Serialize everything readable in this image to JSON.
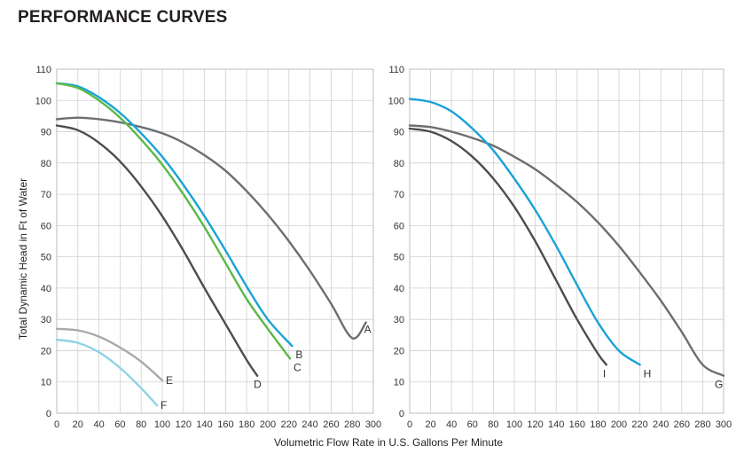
{
  "title": "PERFORMANCE CURVES",
  "chart_data": [
    {
      "type": "line",
      "ylabel": "Total Dynamic Head in Ft of Water",
      "xlabel": "",
      "xlim": [
        0,
        300
      ],
      "ylim": [
        0,
        110
      ],
      "xticks": [
        "0",
        "20",
        "40",
        "60",
        "80",
        "100",
        "120",
        "140",
        "160",
        "180",
        "200",
        "220",
        "240",
        "260",
        "280",
        "300"
      ],
      "yticks": [
        "0",
        "10",
        "20",
        "30",
        "40",
        "50",
        "60",
        "70",
        "80",
        "90",
        "100",
        "110"
      ],
      "grid": true,
      "series": [
        {
          "name": "A",
          "color": "#6d6e71",
          "x": [
            0,
            20,
            40,
            60,
            80,
            100,
            120,
            140,
            160,
            180,
            200,
            220,
            240,
            260,
            280,
            293
          ],
          "y": [
            94,
            94.5,
            94,
            93,
            91.5,
            89.5,
            86.5,
            82.5,
            77.5,
            71,
            63.5,
            55,
            45.5,
            35,
            24,
            29
          ]
        },
        {
          "name": "B",
          "color": "#1aa3d6",
          "x": [
            0,
            20,
            40,
            60,
            80,
            100,
            120,
            140,
            160,
            180,
            200,
            223
          ],
          "y": [
            105.5,
            104.5,
            101,
            96,
            89.5,
            82,
            73,
            63,
            52,
            40.5,
            30,
            21.5
          ]
        },
        {
          "name": "C",
          "color": "#5bb947",
          "x": [
            0,
            20,
            40,
            60,
            80,
            100,
            120,
            140,
            160,
            180,
            200,
            221
          ],
          "y": [
            105.5,
            104,
            100,
            94.5,
            87.5,
            79.5,
            70,
            59.5,
            48,
            36.5,
            27,
            17.5
          ]
        },
        {
          "name": "D",
          "color": "#4d4d4f",
          "x": [
            0,
            20,
            40,
            60,
            80,
            100,
            120,
            140,
            160,
            180,
            190
          ],
          "y": [
            92,
            90.5,
            86.5,
            80.5,
            72.5,
            63,
            52,
            40,
            28.5,
            17,
            12
          ]
        },
        {
          "name": "E",
          "color": "#a7a9ac",
          "x": [
            0,
            20,
            40,
            60,
            80,
            100
          ],
          "y": [
            27,
            26.5,
            24.5,
            21,
            16.5,
            10.5
          ]
        },
        {
          "name": "F",
          "color": "#8fd2e6",
          "x": [
            0,
            20,
            40,
            60,
            80,
            95
          ],
          "y": [
            23.5,
            22.5,
            19.5,
            14.5,
            8,
            2.5
          ]
        }
      ]
    },
    {
      "type": "line",
      "xlabel": "",
      "ylabel": "",
      "xlim": [
        0,
        300
      ],
      "ylim": [
        0,
        110
      ],
      "xticks": [
        "0",
        "20",
        "40",
        "60",
        "80",
        "100",
        "120",
        "140",
        "160",
        "180",
        "200",
        "220",
        "240",
        "260",
        "280",
        "300"
      ],
      "yticks": [
        "0",
        "10",
        "20",
        "30",
        "40",
        "50",
        "60",
        "70",
        "80",
        "90",
        "100",
        "110"
      ],
      "grid": true,
      "series": [
        {
          "name": "G",
          "color": "#6d6e71",
          "x": [
            0,
            20,
            40,
            60,
            80,
            100,
            120,
            140,
            160,
            180,
            200,
            220,
            240,
            260,
            280,
            300
          ],
          "y": [
            92,
            91.5,
            90,
            88,
            85.5,
            82,
            78,
            73,
            67.5,
            61,
            53.5,
            45,
            36,
            26,
            15.5,
            12
          ]
        },
        {
          "name": "H",
          "color": "#1aa3d6",
          "x": [
            0,
            20,
            40,
            60,
            80,
            100,
            120,
            140,
            160,
            180,
            200,
            220
          ],
          "y": [
            100.5,
            99.5,
            96.5,
            91,
            84,
            75,
            65,
            53.5,
            41,
            29,
            20,
            15.5
          ]
        },
        {
          "name": "I",
          "color": "#4d4d4f",
          "x": [
            0,
            20,
            40,
            60,
            80,
            100,
            120,
            140,
            160,
            180,
            188
          ],
          "y": [
            91,
            90,
            87,
            82,
            75,
            66,
            55,
            42.5,
            30,
            19,
            15.5
          ]
        }
      ]
    }
  ],
  "shared_xlabel": "Volumetric Flow Rate in U.S. Gallons Per Minute"
}
